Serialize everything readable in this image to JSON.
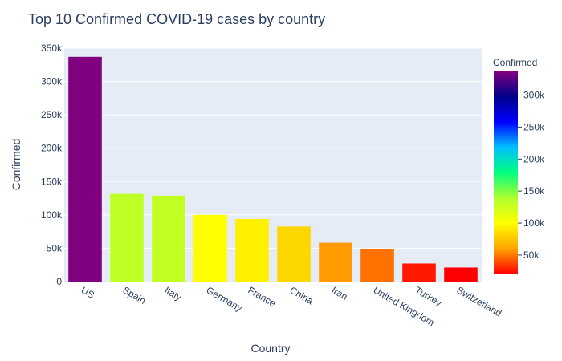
{
  "chart_data": {
    "type": "bar",
    "title": "Top 10 Confirmed COVID-19 cases by country",
    "xlabel": "Country",
    "ylabel": "Confirmed",
    "categories": [
      "US",
      "Spain",
      "Italy",
      "Germany",
      "France",
      "China",
      "Iran",
      "United Kingdom",
      "Turkey",
      "Switzerland"
    ],
    "values": [
      337000,
      131600,
      128900,
      100100,
      93800,
      82600,
      58200,
      48400,
      27100,
      21100
    ],
    "ylim": [
      0,
      350000
    ],
    "yticks": [
      0,
      50000,
      100000,
      150000,
      200000,
      250000,
      300000,
      350000
    ],
    "ytick_labels": [
      "0",
      "50k",
      "100k",
      "150k",
      "200k",
      "250k",
      "300k",
      "350k"
    ],
    "grid": true,
    "plot_background": "#e5ecf6",
    "colorbar": {
      "title": "Confirmed",
      "position": "right",
      "range": [
        21100,
        337000
      ],
      "ticks": [
        50000,
        100000,
        150000,
        200000,
        250000,
        300000
      ],
      "tick_labels": [
        "50k",
        "100k",
        "150k",
        "200k",
        "250k",
        "300k"
      ],
      "colorscale": [
        "#ff0000",
        "#ffa500",
        "#ffff00",
        "#adff2f",
        "#00ff7f",
        "#00bfff",
        "#0000ff",
        "#00008b",
        "#800080"
      ]
    }
  }
}
